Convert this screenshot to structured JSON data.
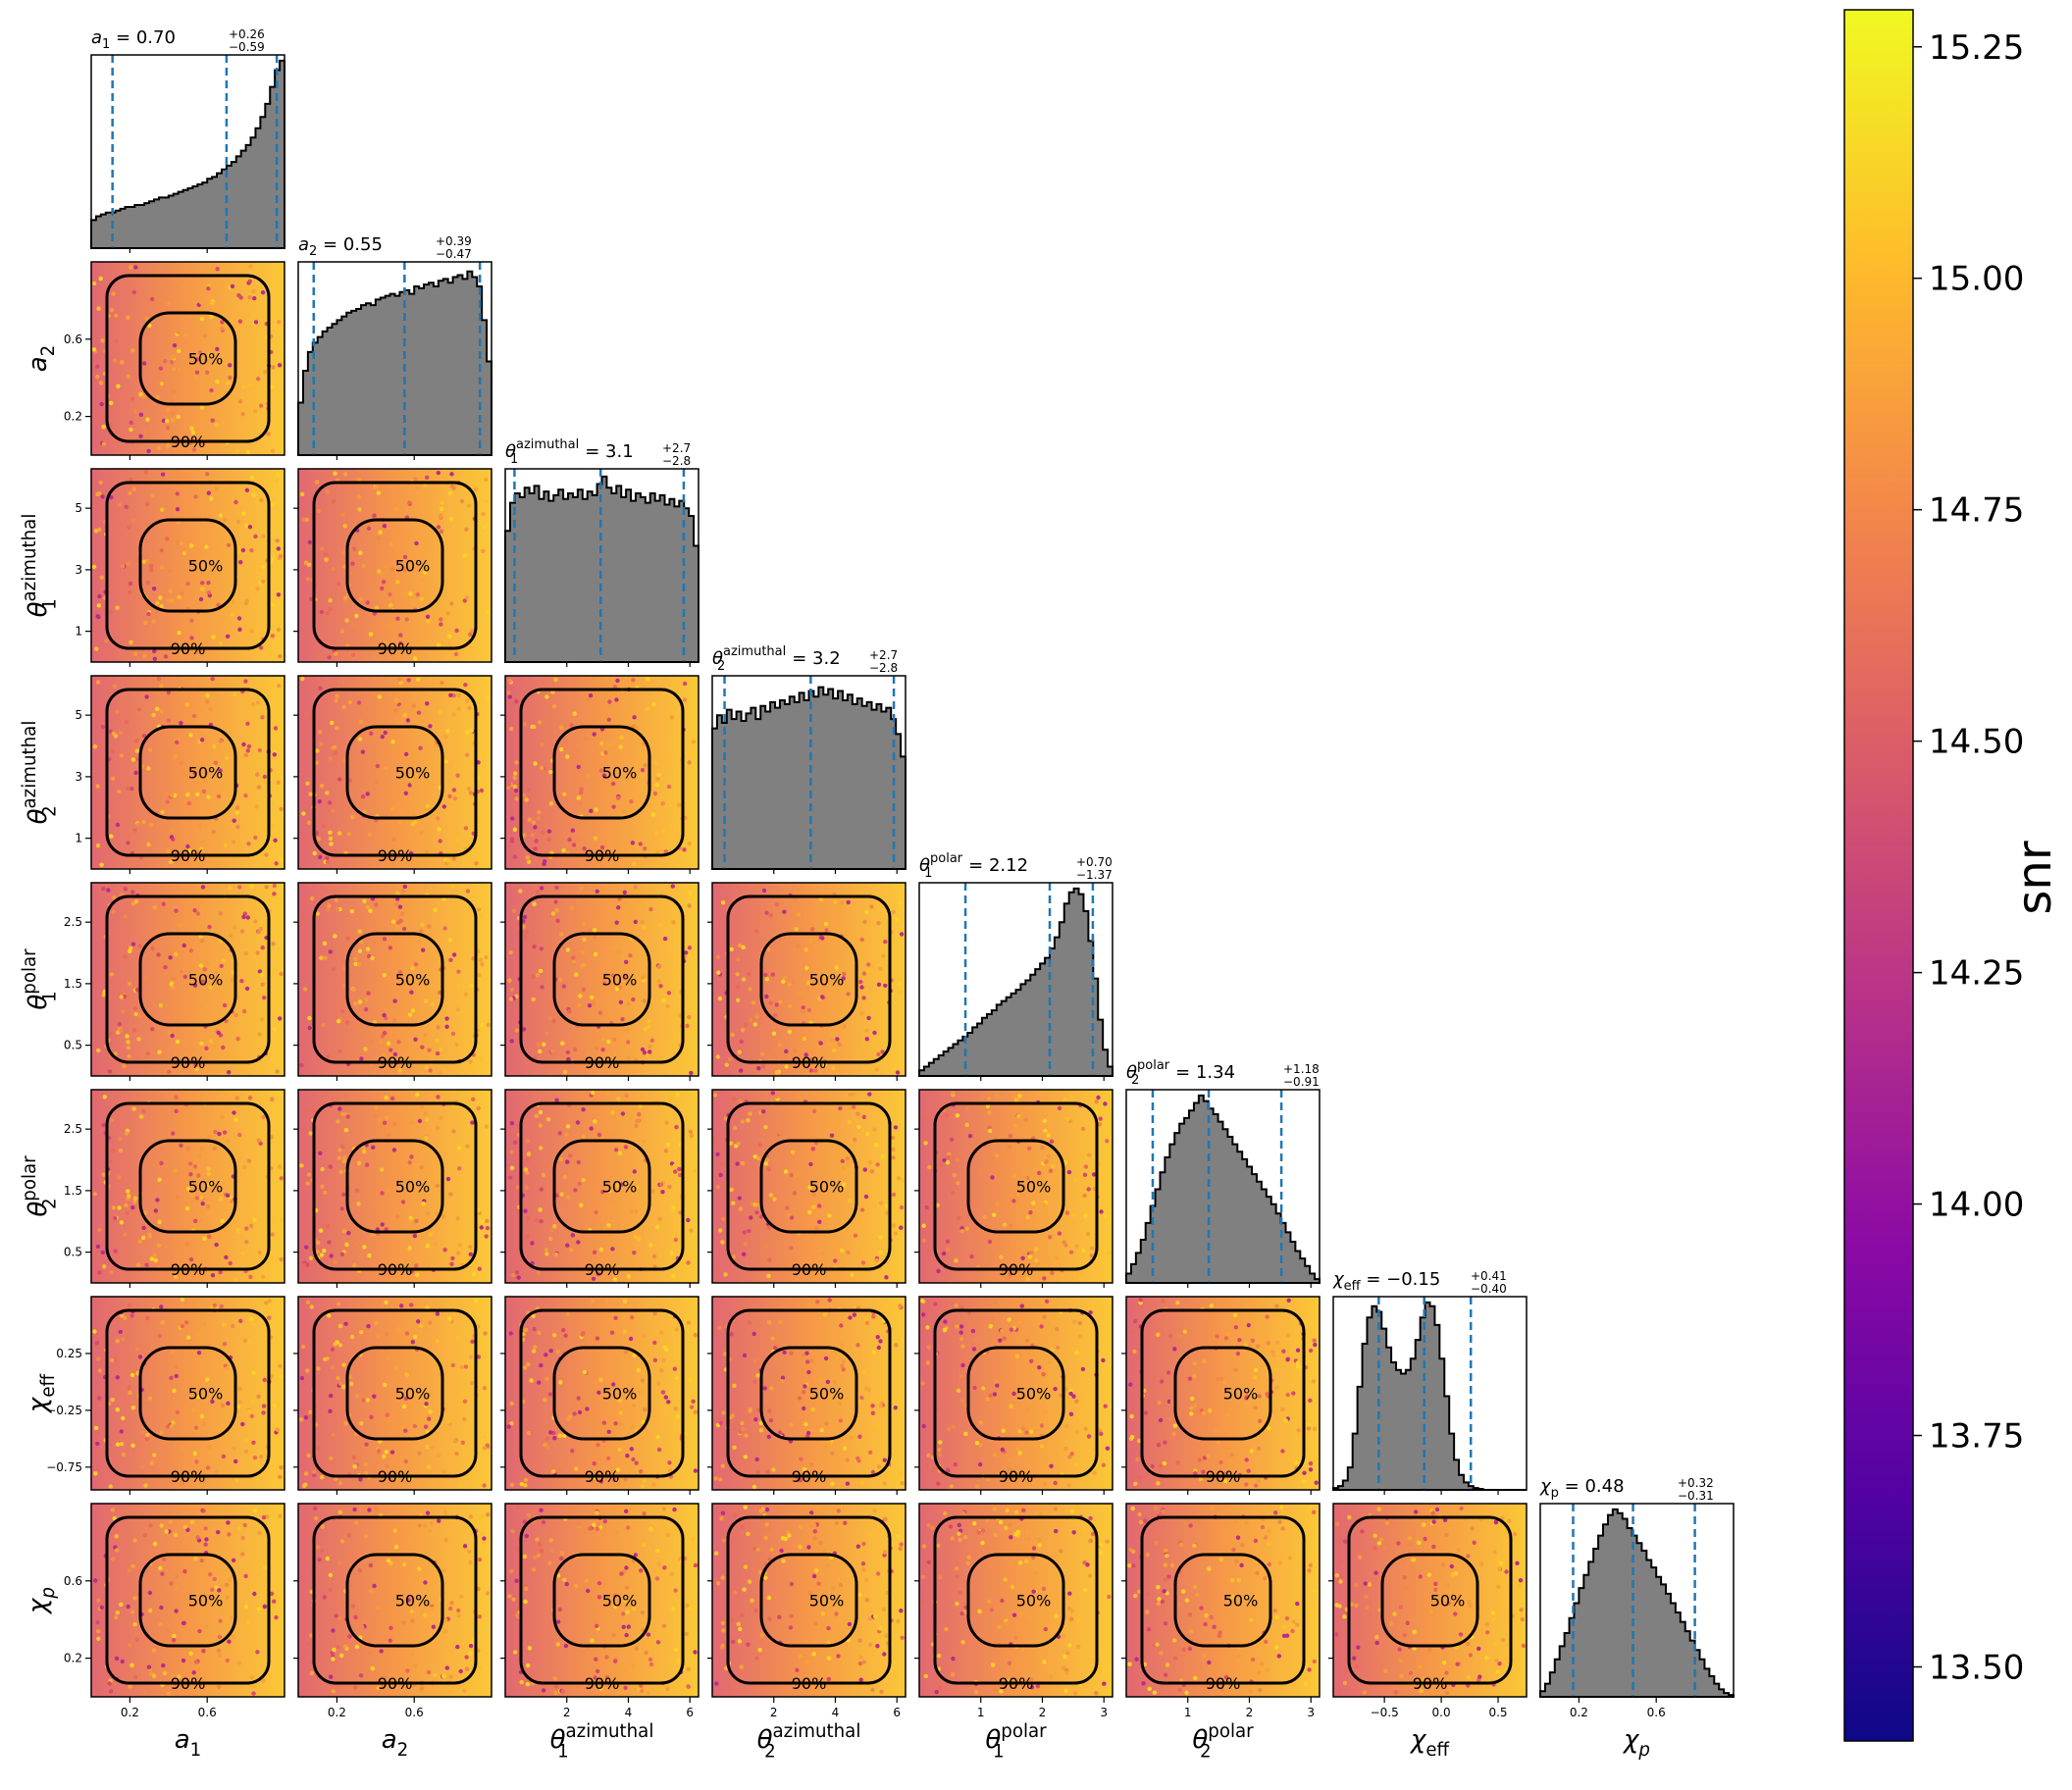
{
  "chart_data": {
    "type": "corner",
    "parameters": [
      {
        "key": "a1",
        "base": "a",
        "sub": "1",
        "sup": "",
        "italic": true,
        "range": [
          0.0,
          1.0
        ],
        "ticks": [
          0.2,
          0.6
        ],
        "tick_labels": [
          "0.2",
          "0.6"
        ],
        "median": 0.7,
        "plus": 0.26,
        "minus": 0.59,
        "title_value": "0.70",
        "title_plus": "+0.26",
        "title_minus": "−0.59"
      },
      {
        "key": "a2",
        "base": "a",
        "sub": "2",
        "sup": "",
        "italic": true,
        "range": [
          0.0,
          1.0
        ],
        "ticks": [
          0.2,
          0.6
        ],
        "tick_labels": [
          "0.2",
          "0.6"
        ],
        "median": 0.55,
        "plus": 0.39,
        "minus": 0.47,
        "title_value": "0.55",
        "title_plus": "+0.39",
        "title_minus": "−0.47"
      },
      {
        "key": "theta1_azimuthal",
        "base": "θ",
        "sub": "1",
        "sup": "azimuthal",
        "italic": true,
        "range": [
          0.0,
          6.28
        ],
        "ticks": [
          1,
          3,
          5
        ],
        "tick_labels": [
          "1",
          "3",
          "5"
        ],
        "x_ticks": [
          2,
          4,
          6
        ],
        "x_tick_labels": [
          "2",
          "4",
          "6"
        ],
        "median": 3.1,
        "plus": 2.7,
        "minus": 2.8,
        "title_value": "3.1",
        "title_plus": "+2.7",
        "title_minus": "−2.8"
      },
      {
        "key": "theta2_azimuthal",
        "base": "θ",
        "sub": "2",
        "sup": "azimuthal",
        "italic": true,
        "range": [
          0.0,
          6.28
        ],
        "ticks": [
          1,
          3,
          5
        ],
        "tick_labels": [
          "1",
          "3",
          "5"
        ],
        "x_ticks": [
          2,
          4,
          6
        ],
        "x_tick_labels": [
          "2",
          "4",
          "6"
        ],
        "median": 3.2,
        "plus": 2.7,
        "minus": 2.8,
        "title_value": "3.2",
        "title_plus": "+2.7",
        "title_minus": "−2.8"
      },
      {
        "key": "theta1_polar",
        "base": "θ",
        "sub": "1",
        "sup": "polar",
        "italic": true,
        "range": [
          0.0,
          3.14
        ],
        "ticks": [
          0.5,
          1.5,
          2.5
        ],
        "tick_labels": [
          "0.5",
          "1.5",
          "2.5"
        ],
        "x_ticks": [
          1,
          2,
          3
        ],
        "x_tick_labels": [
          "1",
          "2",
          "3"
        ],
        "median": 2.12,
        "plus": 0.7,
        "minus": 1.37,
        "title_value": "2.12",
        "title_plus": "+0.70",
        "title_minus": "−1.37"
      },
      {
        "key": "theta2_polar",
        "base": "θ",
        "sub": "2",
        "sup": "polar",
        "italic": true,
        "range": [
          0.0,
          3.14
        ],
        "ticks": [
          0.5,
          1.5,
          2.5
        ],
        "tick_labels": [
          "0.5",
          "1.5",
          "2.5"
        ],
        "x_ticks": [
          1,
          2,
          3
        ],
        "x_tick_labels": [
          "1",
          "2",
          "3"
        ],
        "median": 1.34,
        "plus": 1.18,
        "minus": 0.91,
        "title_value": "1.34",
        "title_plus": "+1.18",
        "title_minus": "−0.91"
      },
      {
        "key": "chi_eff",
        "base": "χ",
        "sub": "eff",
        "sup": "",
        "italic": true,
        "range": [
          -0.95,
          0.75
        ],
        "ticks": [
          -0.75,
          -0.25,
          0.25
        ],
        "tick_labels": [
          "−0.75",
          "−0.25",
          "0.25"
        ],
        "x_ticks": [
          -0.5,
          0.0,
          0.5
        ],
        "x_tick_labels": [
          "−0.5",
          "0.0",
          "0.5"
        ],
        "median": -0.15,
        "plus": 0.41,
        "minus": 0.4,
        "title_value": "−0.15",
        "title_plus": "+0.41",
        "title_minus": "−0.40"
      },
      {
        "key": "chi_p",
        "base": "χ",
        "sub": "p",
        "sup": "",
        "italic": true,
        "range": [
          0.0,
          1.0
        ],
        "ticks": [
          0.2,
          0.6
        ],
        "tick_labels": [
          "0.2",
          "0.6"
        ],
        "median": 0.48,
        "plus": 0.32,
        "minus": 0.31,
        "title_value": "0.48",
        "title_plus": "+0.32",
        "title_minus": "−0.31"
      }
    ],
    "histograms": {
      "a1": [
        0.15,
        0.17,
        0.18,
        0.19,
        0.19,
        0.2,
        0.21,
        0.22,
        0.22,
        0.23,
        0.23,
        0.24,
        0.25,
        0.26,
        0.27,
        0.27,
        0.28,
        0.29,
        0.3,
        0.31,
        0.32,
        0.33,
        0.34,
        0.35,
        0.37,
        0.38,
        0.4,
        0.42,
        0.44,
        0.46,
        0.49,
        0.52,
        0.55,
        0.59,
        0.64,
        0.7,
        0.77,
        0.86,
        0.95,
        1.0
      ],
      "a2": [
        0.28,
        0.45,
        0.55,
        0.6,
        0.63,
        0.66,
        0.68,
        0.7,
        0.72,
        0.74,
        0.76,
        0.77,
        0.78,
        0.8,
        0.81,
        0.8,
        0.83,
        0.84,
        0.85,
        0.86,
        0.85,
        0.87,
        0.88,
        0.86,
        0.9,
        0.89,
        0.91,
        0.92,
        0.9,
        0.93,
        0.94,
        0.92,
        0.95,
        0.96,
        0.94,
        0.98,
        0.95,
        0.9,
        0.72,
        0.5
      ],
      "theta1_azimuthal": [
        0.7,
        0.85,
        0.9,
        0.88,
        0.93,
        0.9,
        0.94,
        0.87,
        0.91,
        0.86,
        0.89,
        0.92,
        0.87,
        0.9,
        0.88,
        0.92,
        0.87,
        0.91,
        0.89,
        0.95,
        0.99,
        0.93,
        0.9,
        0.94,
        0.88,
        0.92,
        0.86,
        0.9,
        0.88,
        0.85,
        0.9,
        0.86,
        0.89,
        0.84,
        0.87,
        0.83,
        0.86,
        0.82,
        0.78,
        0.62
      ],
      "theta2_azimuthal": [
        0.75,
        0.82,
        0.78,
        0.85,
        0.8,
        0.84,
        0.79,
        0.83,
        0.86,
        0.8,
        0.87,
        0.84,
        0.89,
        0.86,
        0.9,
        0.88,
        0.92,
        0.89,
        0.94,
        0.9,
        0.95,
        0.92,
        0.97,
        0.93,
        0.96,
        0.91,
        0.95,
        0.9,
        0.93,
        0.88,
        0.91,
        0.87,
        0.89,
        0.85,
        0.88,
        0.84,
        0.86,
        0.8,
        0.72,
        0.6
      ],
      "theta1_polar": [
        0.03,
        0.05,
        0.07,
        0.09,
        0.11,
        0.13,
        0.15,
        0.17,
        0.19,
        0.21,
        0.23,
        0.26,
        0.28,
        0.31,
        0.33,
        0.35,
        0.38,
        0.4,
        0.42,
        0.44,
        0.46,
        0.49,
        0.51,
        0.54,
        0.57,
        0.6,
        0.63,
        0.68,
        0.74,
        0.82,
        0.92,
        0.98,
        1.0,
        0.97,
        0.88,
        0.72,
        0.52,
        0.3,
        0.14,
        0.05
      ],
      "theta2_polar": [
        0.05,
        0.1,
        0.16,
        0.23,
        0.32,
        0.41,
        0.5,
        0.59,
        0.67,
        0.74,
        0.8,
        0.85,
        0.88,
        0.92,
        0.96,
        1.0,
        0.97,
        0.93,
        0.9,
        0.86,
        0.82,
        0.78,
        0.74,
        0.7,
        0.66,
        0.62,
        0.58,
        0.54,
        0.5,
        0.46,
        0.42,
        0.37,
        0.32,
        0.27,
        0.22,
        0.17,
        0.13,
        0.09,
        0.05,
        0.02
      ],
      "chi_eff": [
        0.01,
        0.02,
        0.05,
        0.12,
        0.3,
        0.55,
        0.78,
        0.92,
        0.98,
        0.95,
        0.86,
        0.76,
        0.68,
        0.64,
        0.62,
        0.64,
        0.7,
        0.8,
        0.92,
        1.0,
        0.98,
        0.88,
        0.7,
        0.5,
        0.3,
        0.16,
        0.08,
        0.04,
        0.02,
        0.01,
        0.005,
        0.0,
        0.0,
        0.0,
        0.0,
        0.0,
        0.0,
        0.0,
        0.0,
        0.0
      ],
      "chi_p": [
        0.03,
        0.07,
        0.13,
        0.2,
        0.27,
        0.34,
        0.42,
        0.5,
        0.58,
        0.65,
        0.72,
        0.79,
        0.86,
        0.92,
        0.97,
        1.0,
        0.98,
        0.95,
        0.9,
        0.86,
        0.82,
        0.78,
        0.73,
        0.69,
        0.64,
        0.6,
        0.55,
        0.5,
        0.45,
        0.4,
        0.35,
        0.3,
        0.25,
        0.2,
        0.15,
        0.11,
        0.07,
        0.04,
        0.02,
        0.01
      ]
    },
    "contour_labels": [
      "50%",
      "90%"
    ],
    "colorbar": {
      "label": "snr",
      "min": 13.42,
      "max": 15.29,
      "ticks": [
        13.5,
        13.75,
        14.0,
        14.25,
        14.5,
        14.75,
        15.0,
        15.25
      ],
      "tick_labels": [
        "13.50",
        "13.75",
        "14.00",
        "14.25",
        "14.50",
        "14.75",
        "15.00",
        "15.25"
      ],
      "colormap": "plasma",
      "stops": [
        "#0d0887",
        "#5302a3",
        "#8b0aa5",
        "#b83289",
        "#db5c68",
        "#f48849",
        "#febd2a",
        "#f0f921"
      ]
    },
    "histogram_fill": "#808080",
    "quantile_line_color": "#1f77b4"
  }
}
